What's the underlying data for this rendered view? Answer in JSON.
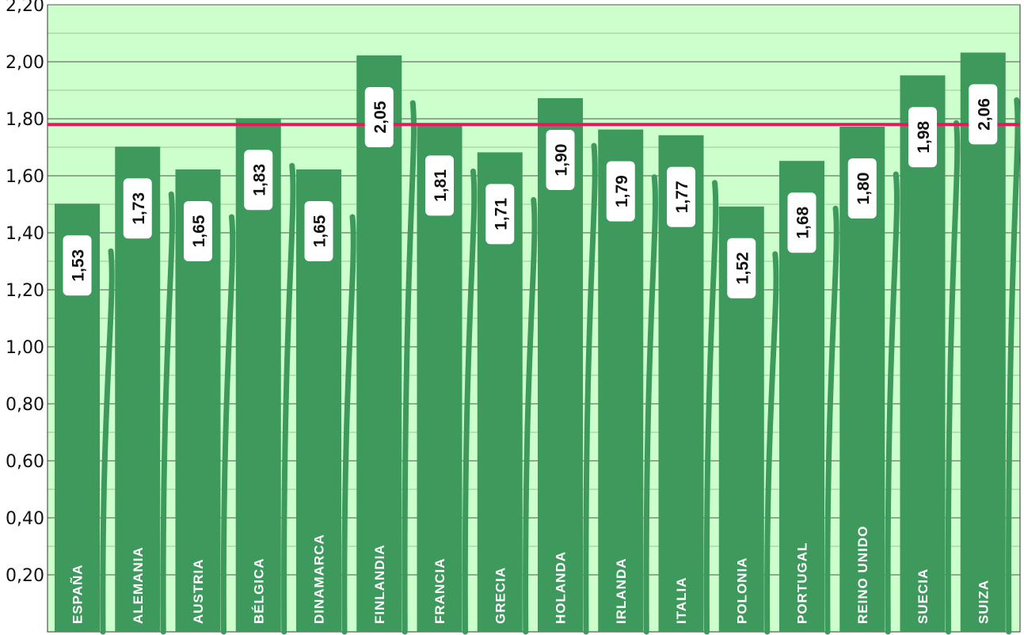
{
  "chart_data": {
    "type": "bar",
    "categories": [
      "ESPAÑA",
      "ALEMANIA",
      "AUSTRIA",
      "BÉLGICA",
      "DINAMARCA",
      "FINLANDIA",
      "FRANCIA",
      "GRECIA",
      "HOLANDA",
      "IRLANDA",
      "ITALIA",
      "POLONIA",
      "PORTUGAL",
      "REINO UNIDO",
      "SUECIA",
      "SUIZA"
    ],
    "values": [
      1.53,
      1.73,
      1.65,
      1.83,
      1.65,
      2.05,
      1.81,
      1.71,
      1.9,
      1.79,
      1.77,
      1.52,
      1.68,
      1.8,
      1.98,
      2.06
    ],
    "value_labels": [
      "1,53",
      "1,73",
      "1,65",
      "1,83",
      "1,65",
      "2,05",
      "1,81",
      "1,71",
      "1,90",
      "1,79",
      "1,77",
      "1,52",
      "1,68",
      "1,80",
      "1,98",
      "2,06"
    ],
    "ylim": [
      0,
      2.2
    ],
    "y_ticks": [
      0.2,
      0.4,
      0.6,
      0.8,
      1.0,
      1.2,
      1.4,
      1.6,
      1.8,
      2.0,
      2.2
    ],
    "y_tick_labels": [
      "0,20",
      "0,40",
      "0,60",
      "0,80",
      "1,00",
      "1,20",
      "1,40",
      "1,60",
      "1,80",
      "2,00",
      "2,20"
    ],
    "reference_line": 1.78,
    "grid": true,
    "colors": {
      "plot_background": "#ccffcc",
      "bar": "#3d9a5c",
      "reference_line": "#e8175d",
      "grid": "#555555"
    }
  }
}
